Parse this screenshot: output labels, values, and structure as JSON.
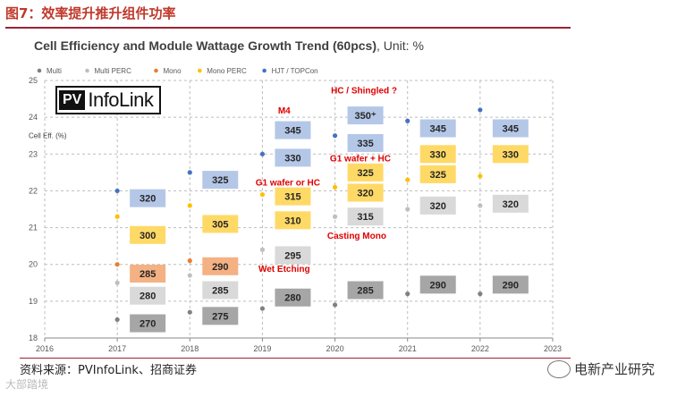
{
  "figure_caption": "图7：效率提升推升组件功率",
  "source_note": "资料来源：PVInfoLink、招商证券",
  "brand": "电新产业研究",
  "watermark": "大部踏境",
  "logo": {
    "pv": "PV",
    "text": "InfoLink"
  },
  "colors": {
    "caption": "#c0392b",
    "multi": "#808080",
    "multi_perc": "#bfbfbf",
    "mono": "#ed7d31",
    "mono_perc": "#ffc000",
    "hjt": "#4472c4",
    "box_gray_dark": "#a6a6a6",
    "box_gray_light": "#d9d9d9",
    "box_orange": "#f4b183",
    "box_yellow": "#ffd966",
    "box_blue": "#b4c7e7",
    "annotation_red": "#e00000"
  },
  "chart_data": {
    "type": "scatter",
    "title": "Cell Efficiency and Module Wattage Growth Trend (60pcs)",
    "title_suffix": ", Unit: %",
    "ylabel": "Cell Eff. (%)",
    "xlim": [
      2016,
      2023
    ],
    "ylim": [
      18,
      25
    ],
    "x_ticks": [
      "2016",
      "2017",
      "2018",
      "2019",
      "2020",
      "2021",
      "2022",
      "2023"
    ],
    "y_ticks": [
      "18",
      "19",
      "20",
      "21",
      "22",
      "23",
      "24",
      "25"
    ],
    "legend_position": "top",
    "series": [
      {
        "name": "Multi",
        "color": "#808080",
        "points": [
          [
            2017,
            18.5
          ],
          [
            2018,
            18.7
          ],
          [
            2019,
            18.8
          ],
          [
            2020,
            18.9
          ],
          [
            2021,
            19.2
          ],
          [
            2022,
            19.2
          ]
        ]
      },
      {
        "name": "Multi PERC",
        "color": "#bfbfbf",
        "points": [
          [
            2017,
            19.5
          ],
          [
            2018,
            19.7
          ],
          [
            2019,
            20.4
          ],
          [
            2020,
            21.3
          ],
          [
            2021,
            21.5
          ],
          [
            2022,
            21.6
          ]
        ]
      },
      {
        "name": "Mono",
        "color": "#ed7d31",
        "points": [
          [
            2017,
            20.0
          ],
          [
            2018,
            20.1
          ]
        ]
      },
      {
        "name": "Mono PERC",
        "color": "#ffc000",
        "points": [
          [
            2017,
            21.3
          ],
          [
            2018,
            21.6
          ],
          [
            2019,
            21.9
          ],
          [
            2020,
            22.1
          ],
          [
            2021,
            22.3
          ],
          [
            2022,
            22.4
          ]
        ]
      },
      {
        "name": "HJT / TOPCon",
        "color": "#4472c4",
        "points": [
          [
            2017,
            22.0
          ],
          [
            2018,
            22.5
          ],
          [
            2019,
            23.0
          ],
          [
            2020,
            23.5
          ],
          [
            2021,
            23.9
          ],
          [
            2022,
            24.2
          ]
        ]
      }
    ],
    "wattage_labels": [
      {
        "x": 2017,
        "y": 18.4,
        "label": "270",
        "kind": "multi"
      },
      {
        "x": 2017,
        "y": 19.15,
        "label": "280",
        "kind": "multi_perc"
      },
      {
        "x": 2017,
        "y": 19.75,
        "label": "285",
        "kind": "mono"
      },
      {
        "x": 2017,
        "y": 20.8,
        "label": "300",
        "kind": "mono_perc"
      },
      {
        "x": 2017,
        "y": 21.8,
        "label": "320",
        "kind": "hjt"
      },
      {
        "x": 2018,
        "y": 18.6,
        "label": "275",
        "kind": "multi"
      },
      {
        "x": 2018,
        "y": 19.3,
        "label": "285",
        "kind": "multi_perc"
      },
      {
        "x": 2018,
        "y": 19.95,
        "label": "290",
        "kind": "mono"
      },
      {
        "x": 2018,
        "y": 21.1,
        "label": "305",
        "kind": "mono_perc"
      },
      {
        "x": 2018,
        "y": 22.3,
        "label": "325",
        "kind": "hjt"
      },
      {
        "x": 2019,
        "y": 19.1,
        "label": "280",
        "kind": "multi"
      },
      {
        "x": 2019,
        "y": 20.25,
        "label": "295",
        "kind": "multi_perc"
      },
      {
        "x": 2019,
        "y": 21.2,
        "label": "310",
        "kind": "mono_perc"
      },
      {
        "x": 2019,
        "y": 21.85,
        "label": "315",
        "kind": "mono_perc"
      },
      {
        "x": 2019,
        "y": 22.9,
        "label": "330",
        "kind": "hjt"
      },
      {
        "x": 2019,
        "y": 23.65,
        "label": "345",
        "kind": "hjt"
      },
      {
        "x": 2020,
        "y": 19.3,
        "label": "285",
        "kind": "multi"
      },
      {
        "x": 2020,
        "y": 21.3,
        "label": "315",
        "kind": "multi_perc"
      },
      {
        "x": 2020,
        "y": 21.95,
        "label": "320",
        "kind": "mono_perc"
      },
      {
        "x": 2020,
        "y": 22.5,
        "label": "325",
        "kind": "mono_perc"
      },
      {
        "x": 2020,
        "y": 23.3,
        "label": "335",
        "kind": "hjt"
      },
      {
        "x": 2020,
        "y": 24.05,
        "label": "350⁺",
        "kind": "hjt"
      },
      {
        "x": 2021,
        "y": 19.45,
        "label": "290",
        "kind": "multi"
      },
      {
        "x": 2021,
        "y": 21.6,
        "label": "320",
        "kind": "multi_perc"
      },
      {
        "x": 2021,
        "y": 22.45,
        "label": "325",
        "kind": "mono_perc"
      },
      {
        "x": 2021,
        "y": 23.0,
        "label": "330",
        "kind": "mono_perc"
      },
      {
        "x": 2021,
        "y": 23.7,
        "label": "345",
        "kind": "hjt"
      },
      {
        "x": 2022,
        "y": 19.45,
        "label": "290",
        "kind": "multi"
      },
      {
        "x": 2022,
        "y": 21.65,
        "label": "320",
        "kind": "multi_perc"
      },
      {
        "x": 2022,
        "y": 23.0,
        "label": "330",
        "kind": "mono_perc"
      },
      {
        "x": 2022,
        "y": 23.7,
        "label": "345",
        "kind": "hjt"
      }
    ],
    "annotations": [
      {
        "x": 2019.3,
        "y": 24.1,
        "text": "M4"
      },
      {
        "x": 2019.35,
        "y": 22.15,
        "text": "G1 wafer or HC"
      },
      {
        "x": 2019.3,
        "y": 19.8,
        "text": "Wet Etching"
      },
      {
        "x": 2020.4,
        "y": 24.65,
        "text": "HC / Shingled ?"
      },
      {
        "x": 2020.35,
        "y": 22.8,
        "text": "G1 wafer +  HC"
      },
      {
        "x": 2020.3,
        "y": 20.7,
        "text": "Casting Mono"
      }
    ]
  }
}
